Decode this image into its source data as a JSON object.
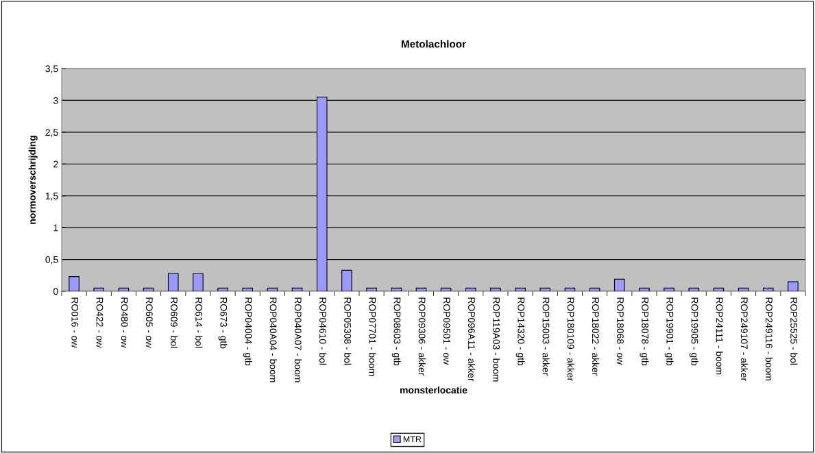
{
  "chart_data": {
    "type": "bar",
    "title": "Metolachloor",
    "xlabel": "monsterlocatie",
    "ylabel": "normoverschrijding",
    "categories": [
      "RO016 - ow",
      "RO422 - ow",
      "RO480 - ow",
      "RO605 - ow",
      "RO609 - bol",
      "RO614 - bol",
      "RO673 - gtb",
      "ROP04004 - gtb",
      "ROP040A04 - boom",
      "ROP040A07 - boom",
      "ROP04610 - bol",
      "ROP05308 - bol",
      "ROP07701 - boom",
      "ROP08603 - gtb",
      "ROP09306 - akker",
      "ROP09501 - ow",
      "ROP096A11 - akker",
      "ROP119A03 - boom",
      "ROP14320 - gtb",
      "ROP15003 - akker",
      "ROP180109 - akker",
      "ROP18022 - akker",
      "ROP18068 - ow",
      "ROP18078 - gtb",
      "ROP19901 - gtb",
      "ROP19905 - gtb",
      "ROP24111 - boom",
      "ROP249107 - akker",
      "ROP249116 - boom",
      "ROP25525 - bol"
    ],
    "series": [
      {
        "name": "MTR",
        "color": "#9999ff",
        "values": [
          0.23,
          0.05,
          0.05,
          0.05,
          0.28,
          0.28,
          0.05,
          0.05,
          0.05,
          0.05,
          3.05,
          0.33,
          0.05,
          0.05,
          0.05,
          0.05,
          0.05,
          0.05,
          0.05,
          0.05,
          0.05,
          0.05,
          0.19,
          0.05,
          0.05,
          0.05,
          0.05,
          0.05,
          0.05,
          0.15
        ]
      }
    ],
    "ylim": [
      0,
      3.5
    ],
    "yticks": [
      0,
      {
        "value": 0.5,
        "label": "0,5"
      },
      1,
      {
        "value": 1.5,
        "label": "1,5"
      },
      2,
      {
        "value": 2.5,
        "label": "2,5"
      },
      3,
      {
        "value": 3.5,
        "label": "3,5"
      }
    ],
    "grid": "y",
    "legend": "bottom"
  }
}
